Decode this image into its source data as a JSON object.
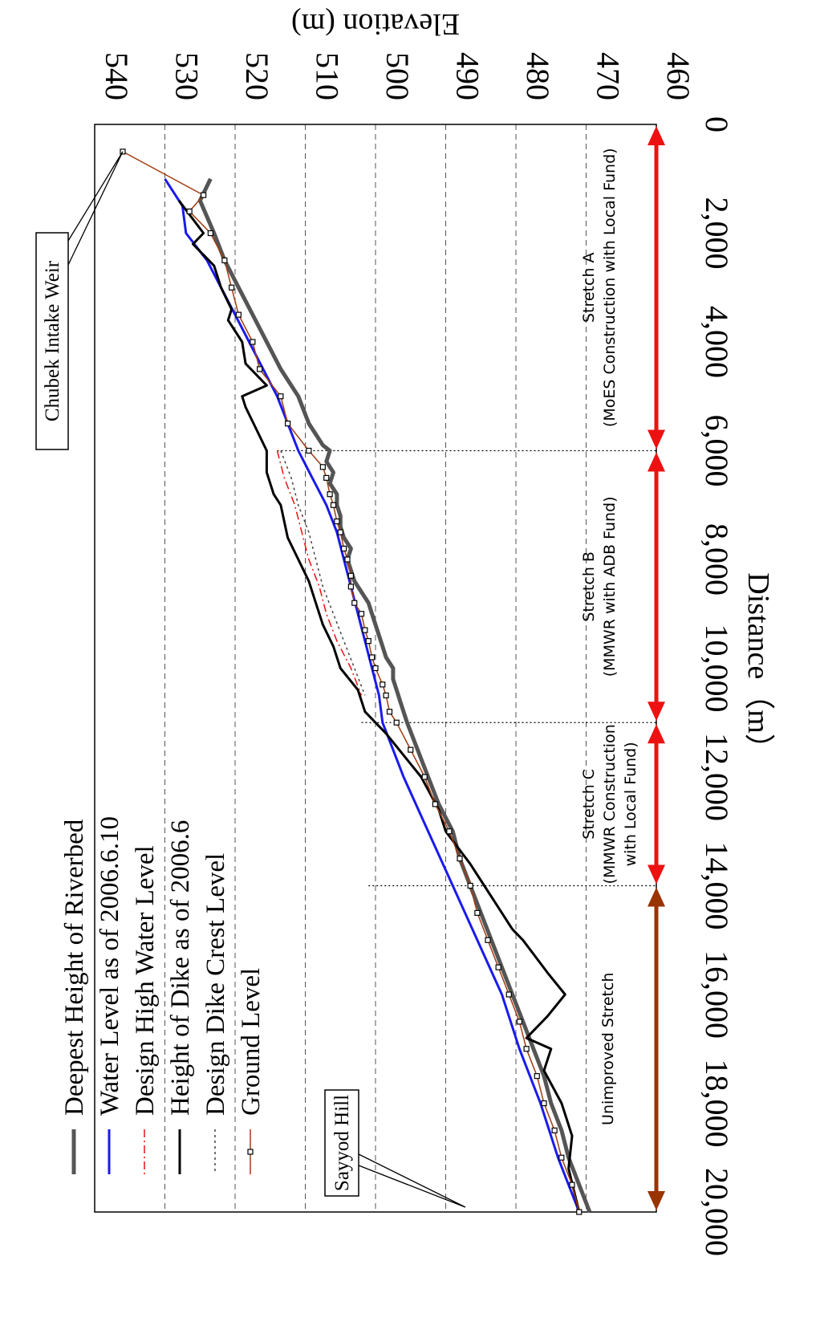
{
  "chart_data": {
    "type": "line",
    "orientation": "rotated-90-clockwise",
    "title": "",
    "xlabel": "Distance（m）",
    "ylabel": "Elevation (m)",
    "xlim": [
      0,
      20000
    ],
    "ylim": [
      460,
      540
    ],
    "x_ticks": [
      "0",
      "2,000",
      "4,000",
      "6,000",
      "8,000",
      "10,000",
      "12,000",
      "14,000",
      "16,000",
      "18,000",
      "20,000"
    ],
    "x_tick_values": [
      0,
      2000,
      4000,
      6000,
      8000,
      10000,
      12000,
      14000,
      16000,
      18000,
      20000
    ],
    "y_ticks": [
      "460",
      "470",
      "480",
      "490",
      "500",
      "510",
      "520",
      "530",
      "540"
    ],
    "y_tick_values": [
      460,
      470,
      480,
      490,
      500,
      510,
      520,
      530,
      540
    ],
    "grid": "horizontal dashed at 470–530",
    "legend": {
      "position": "lower-left",
      "entries": [
        "Deepest Height of Riverbed",
        "Water Level as of 2006.6.10",
        "Design High Water Level",
        "Height of Dike as of 2006.6",
        "Design Dike Crest Level",
        "Ground Level"
      ]
    },
    "series": [
      {
        "name": "Deepest Height of Riverbed",
        "color": "#555555",
        "style": "thick-solid",
        "x": [
          1000,
          1400,
          2000,
          2500,
          3000,
          3500,
          4000,
          4500,
          5000,
          5500,
          5900,
          6000,
          6200,
          6400,
          6600,
          6800,
          7000,
          7200,
          7400,
          7600,
          7800,
          8000,
          8200,
          8400,
          8600,
          8800,
          9000,
          9200,
          9400,
          9600,
          9800,
          10000,
          10200,
          10400,
          10600,
          11000,
          11500,
          12000,
          12500,
          13000,
          13500,
          14000,
          14500,
          15000,
          15500,
          16000,
          16500,
          17000,
          17500,
          18000,
          18500,
          19000,
          19500,
          20000
        ],
        "y": [
          523.5,
          525,
          523,
          521.5,
          519.5,
          517.5,
          515.5,
          513.5,
          511,
          509.5,
          507.5,
          506.5,
          507,
          506,
          506.5,
          505.5,
          505.5,
          505,
          505,
          504.5,
          503.5,
          504,
          503.5,
          503,
          502,
          501,
          500.5,
          500,
          499.5,
          499,
          498.5,
          497.5,
          497.5,
          497,
          496.5,
          495.5,
          494,
          492.5,
          491,
          489,
          488,
          486.5,
          485,
          483.5,
          482,
          480.5,
          479,
          477.5,
          476,
          475,
          473.5,
          472.5,
          471,
          469.5
        ]
      },
      {
        "name": "Water Level as of 2006.6.10",
        "color": "#1a1aee",
        "style": "solid",
        "x": [
          1000,
          1500,
          2000,
          2500,
          3000,
          3500,
          4000,
          4500,
          5000,
          5500,
          6000,
          6500,
          7000,
          7500,
          8000,
          8500,
          9000,
          9500,
          10000,
          10500,
          11000,
          11500,
          12000,
          13000,
          14000,
          15000,
          16000,
          17000,
          18000,
          19000,
          20000
        ],
        "y": [
          530,
          527.5,
          527,
          524,
          522,
          520,
          518,
          516,
          514,
          512.5,
          511,
          509,
          507,
          505.5,
          504.5,
          503.5,
          502.5,
          501.5,
          500.5,
          499.5,
          499,
          497.5,
          496,
          492.5,
          489,
          485.5,
          482,
          479.5,
          476.5,
          474,
          471
        ]
      },
      {
        "name": "Design High Water Level",
        "color": "#ee1111",
        "style": "dash-dot",
        "x": [
          6000,
          6500,
          7000,
          7500,
          8000,
          8500,
          9000,
          9500,
          10000,
          10500
        ],
        "y": [
          514,
          513,
          511.5,
          510.5,
          509.5,
          508,
          507,
          505.5,
          503.5,
          502
        ]
      },
      {
        "name": "Height of Dike as of 2006.6",
        "color": "#000000",
        "style": "solid",
        "x": [
          1400,
          2000,
          2200,
          2600,
          3000,
          3400,
          3600,
          4000,
          4400,
          4800,
          5000,
          5200,
          5600,
          6000,
          6400,
          6800,
          7000,
          7600,
          8000,
          8400,
          8800,
          9200,
          9600,
          10000,
          10400,
          10800,
          11200,
          11600,
          12000,
          12600,
          13000,
          13600,
          14000,
          14400,
          14800,
          15000,
          15600,
          16000,
          16400,
          16800,
          17000,
          17400,
          18000,
          18600,
          19200,
          20000
        ],
        "y": [
          528,
          524.5,
          526,
          523,
          522,
          520.5,
          521,
          519,
          518.5,
          515.5,
          519,
          518.5,
          517,
          515.5,
          515.5,
          514.5,
          513.5,
          512.5,
          511,
          509.5,
          508.5,
          507.5,
          506,
          505,
          502.5,
          501.5,
          498.5,
          496,
          493.5,
          491,
          490,
          486.5,
          484.5,
          482.5,
          480.5,
          479,
          475.5,
          473,
          475.5,
          478.5,
          475,
          476,
          473.5,
          472,
          472.5,
          471
        ]
      },
      {
        "name": "Design Dike Crest Level",
        "color": "#444444",
        "style": "dotted",
        "x": [
          6000,
          6500,
          7000,
          7500,
          8000,
          8500,
          9000,
          9500,
          10000,
          10500
        ],
        "y": [
          513.5,
          512,
          511,
          509.5,
          508.5,
          507.5,
          506,
          504.5,
          503,
          501.5
        ]
      },
      {
        "name": "Ground Level",
        "color": "#a03c10",
        "style": "solid-with-square-markers",
        "x": [
          500,
          1300,
          1600,
          2000,
          2500,
          3000,
          3500,
          4000,
          4500,
          5000,
          5500,
          6000,
          6300,
          6500,
          6800,
          7000,
          7300,
          7500,
          7800,
          8000,
          8300,
          8500,
          8800,
          9000,
          9300,
          9500,
          9800,
          10000,
          10300,
          10500,
          10800,
          11000,
          11500,
          12000,
          12500,
          13000,
          13500,
          14000,
          14500,
          15000,
          15500,
          16000,
          16500,
          17000,
          17500,
          18000,
          18500,
          19000,
          19500,
          20000
        ],
        "y": [
          536,
          524.5,
          526.5,
          523.5,
          521.5,
          520.5,
          519.5,
          517.5,
          516.5,
          513.5,
          512.5,
          509.5,
          507.5,
          507,
          506.5,
          506,
          505.5,
          505,
          504.5,
          504,
          503.5,
          503.5,
          503,
          502,
          501.5,
          501,
          500.5,
          500,
          499,
          498.5,
          498,
          497,
          495,
          493,
          491.5,
          489.5,
          488,
          486.5,
          485.5,
          484,
          482.5,
          481,
          479.5,
          478.5,
          477,
          476,
          474.5,
          473.5,
          472,
          471
        ]
      }
    ],
    "stretches": [
      {
        "name": "Stretch A",
        "desc": "(MoES Construction with Local Fund)",
        "from": 0,
        "to": 6000,
        "color": "#ee1111"
      },
      {
        "name": "Stretch B",
        "desc": "(MMWR with ADB Fund)",
        "from": 6000,
        "to": 11000,
        "color": "#ee1111"
      },
      {
        "name": "Stretch C",
        "desc": "(MMWR Construction",
        "desc2": "with Local Fund)",
        "from": 11000,
        "to": 14000,
        "color": "#ee1111"
      },
      {
        "name": "Unimproved Stretch",
        "from": 14000,
        "to": 20000,
        "color": "#993300"
      }
    ],
    "annotations": [
      {
        "name": "chubek-intake-weir",
        "text": "Chubek Intake Weir",
        "x": 500,
        "y": 536
      },
      {
        "name": "sayyod-hill",
        "text": "Sayyod Hill",
        "x": 20000,
        "y": 492
      }
    ]
  }
}
